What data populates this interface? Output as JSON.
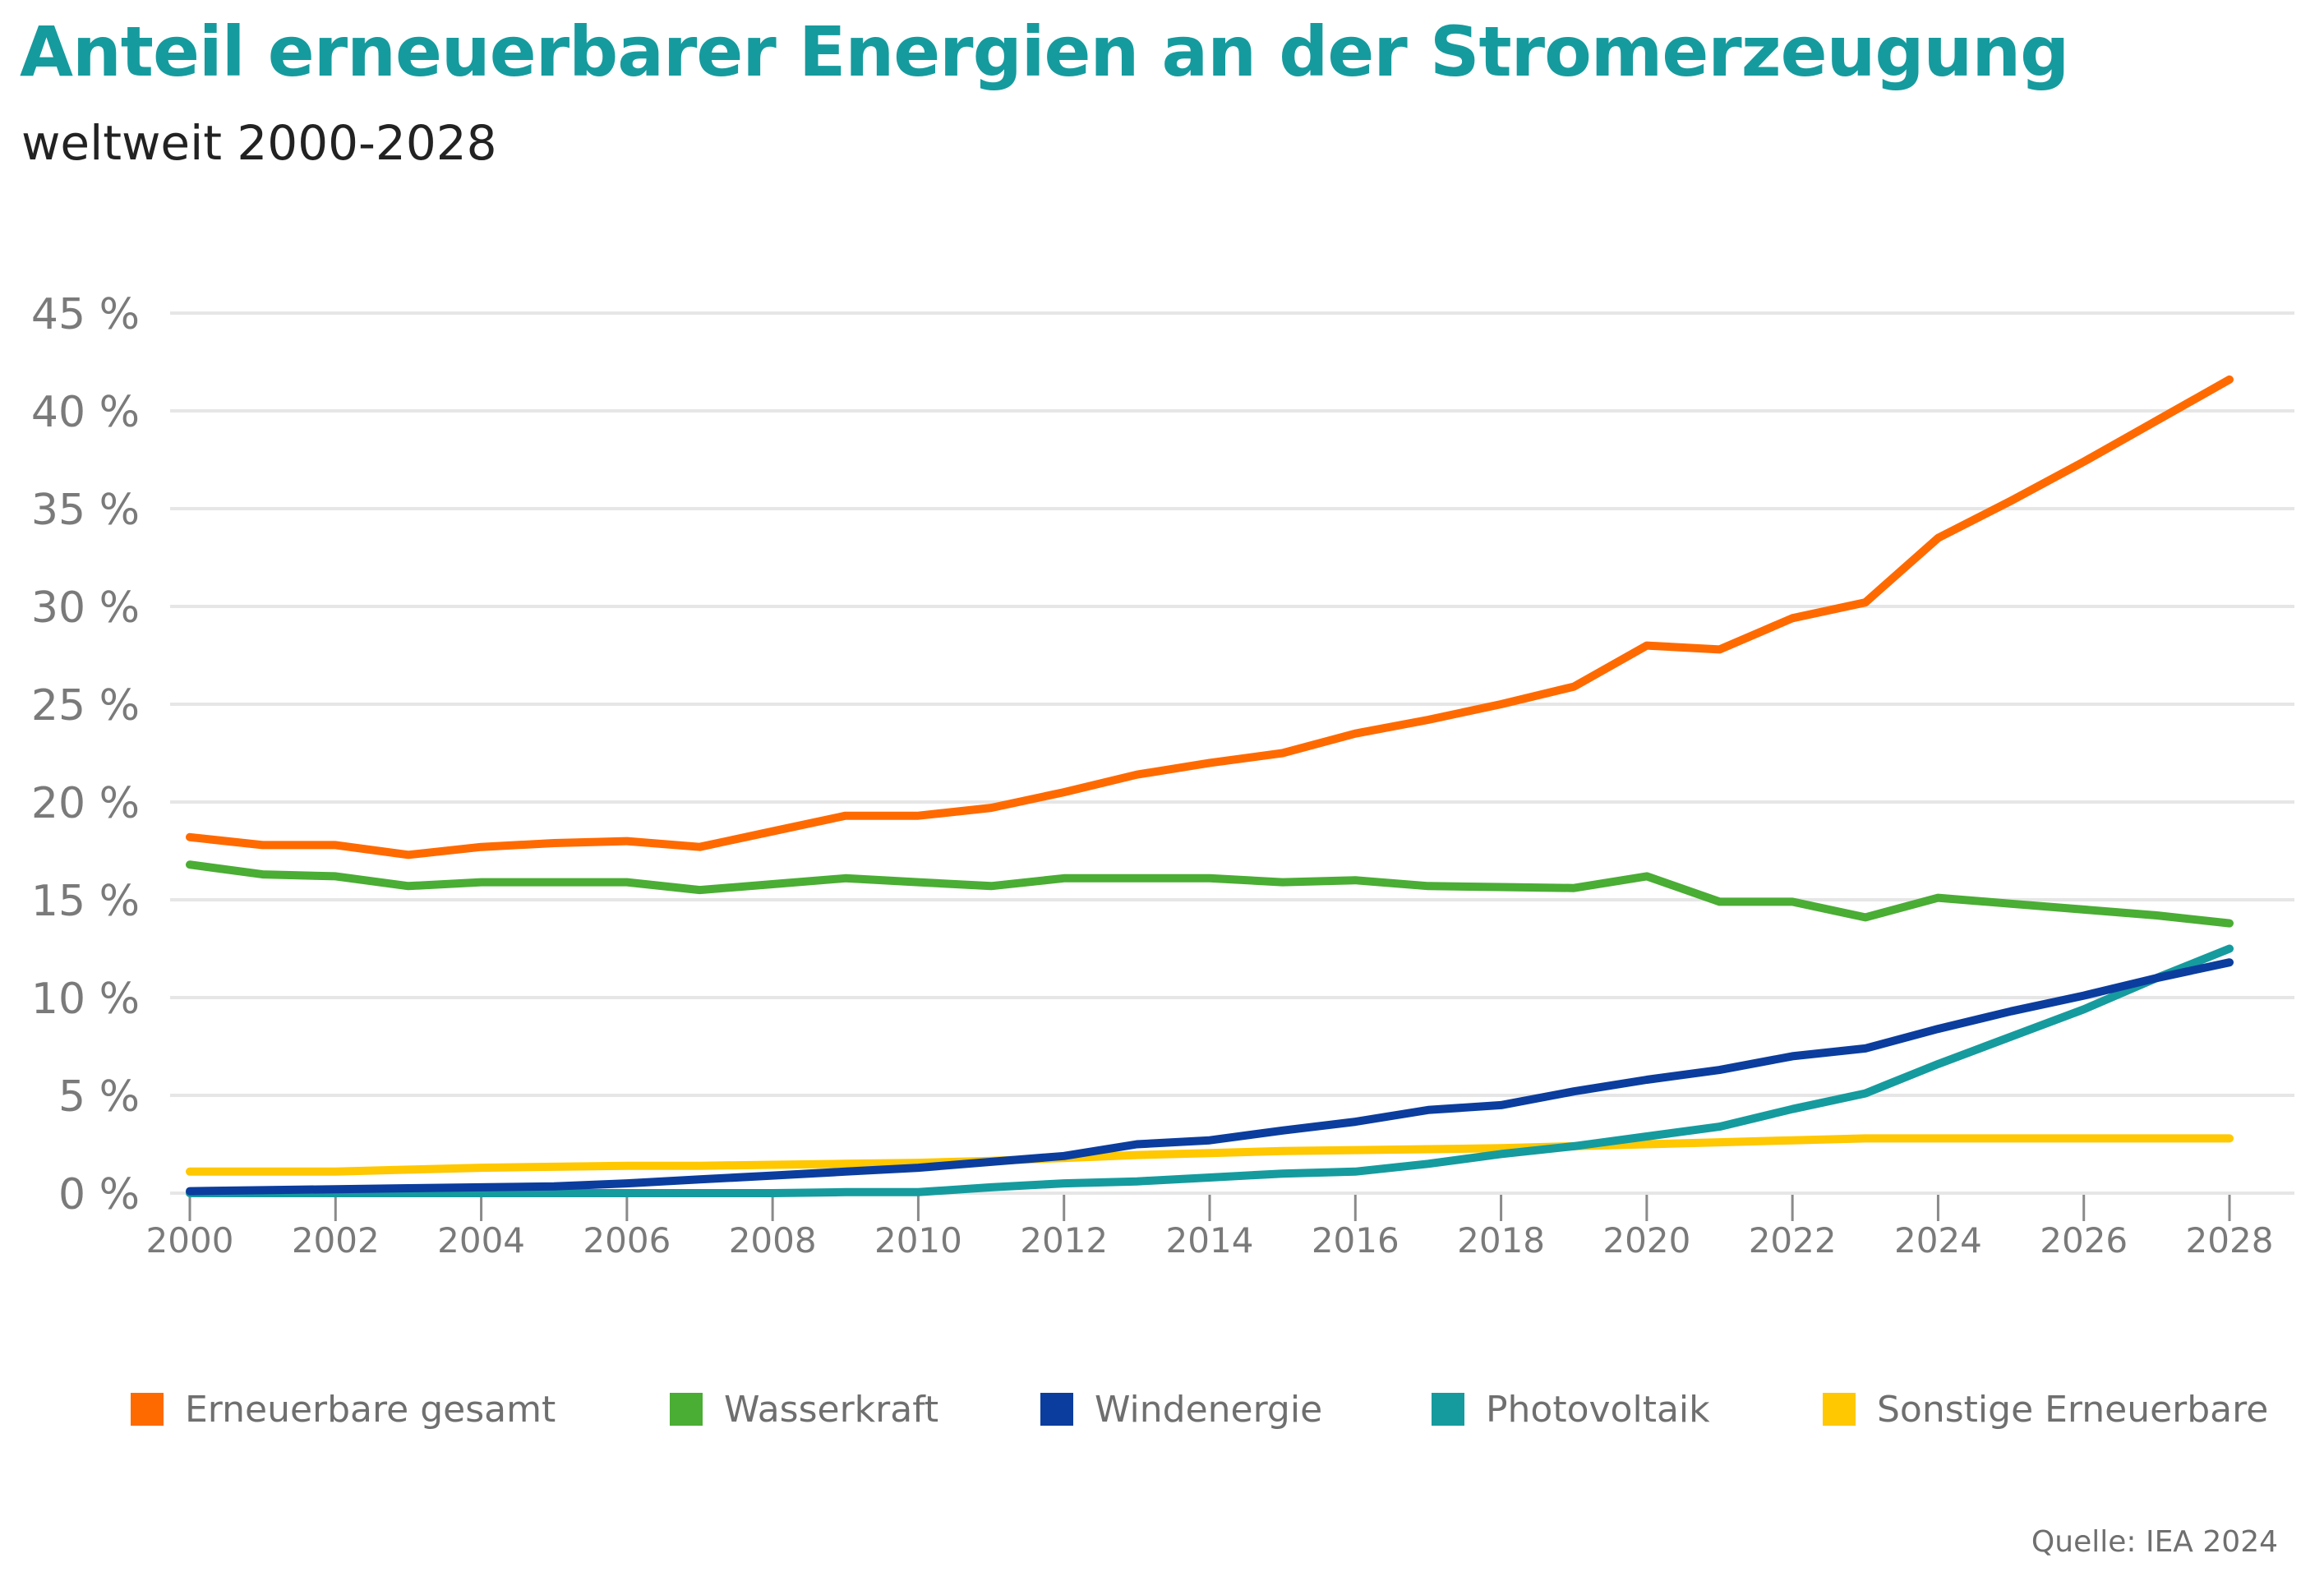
{
  "header": {
    "title": "Anteil erneuerbarer Energien an der Stromerzeugung",
    "subtitle": "weltweit 2000-2028"
  },
  "source": "Quelle: IEA 2024",
  "colors": {
    "title": "#159b9e",
    "grid": "#e6e6e6",
    "tick_text": "#7a7a7a"
  },
  "chart_data": {
    "type": "line",
    "title": "Anteil erneuerbarer Energien an der Stromerzeugung",
    "subtitle": "weltweit 2000-2028",
    "xlabel": "",
    "ylabel": "",
    "x": [
      2000,
      2001,
      2002,
      2003,
      2004,
      2005,
      2006,
      2007,
      2008,
      2009,
      2010,
      2011,
      2012,
      2013,
      2014,
      2015,
      2016,
      2017,
      2018,
      2019,
      2020,
      2021,
      2022,
      2023,
      2024,
      2025,
      2026,
      2027,
      2028
    ],
    "xlim": [
      2000,
      2028
    ],
    "ylim": [
      0,
      45
    ],
    "x_ticks": [
      "2000",
      "2002",
      "2004",
      "2006",
      "2008",
      "2010",
      "2012",
      "2014",
      "2016",
      "2018",
      "2020",
      "2022",
      "2024",
      "2026",
      "2028"
    ],
    "y_ticks": [
      "0 %",
      "5 %",
      "10 %",
      "15 %",
      "20 %",
      "25 %",
      "30 %",
      "35 %",
      "40 %",
      "45 %"
    ],
    "y_tick_values": [
      0,
      5,
      10,
      15,
      20,
      25,
      30,
      35,
      40,
      45
    ],
    "grid": true,
    "legend_position": "bottom",
    "series": [
      {
        "name": "Erneuerbare gesamt",
        "color": "#ff6a00",
        "values": [
          18.2,
          17.8,
          17.8,
          17.3,
          17.7,
          17.9,
          18.0,
          17.7,
          18.5,
          19.3,
          19.3,
          19.7,
          20.5,
          21.4,
          22.0,
          22.5,
          23.5,
          24.2,
          25.0,
          25.9,
          28.0,
          27.8,
          29.4,
          30.2,
          33.5,
          35.4,
          37.4,
          39.5,
          41.6
        ]
      },
      {
        "name": "Wasserkraft",
        "color": "#4aad34",
        "values": [
          16.8,
          16.3,
          16.2,
          15.7,
          15.9,
          15.9,
          15.9,
          15.5,
          15.8,
          16.1,
          15.9,
          15.7,
          16.1,
          16.1,
          16.1,
          15.9,
          16.0,
          15.7,
          15.65,
          15.6,
          16.2,
          14.9,
          14.9,
          14.1,
          15.1,
          14.8,
          14.5,
          14.2,
          13.8
        ]
      },
      {
        "name": "Windenergie",
        "color": "#0b3d9e",
        "values": [
          0.1,
          0.15,
          0.2,
          0.25,
          0.3,
          0.35,
          0.5,
          0.7,
          0.9,
          1.1,
          1.3,
          1.6,
          1.9,
          2.5,
          2.7,
          3.2,
          3.65,
          4.25,
          4.5,
          5.2,
          5.8,
          6.3,
          7.0,
          7.4,
          8.4,
          9.3,
          10.1,
          11.0,
          11.8
        ]
      },
      {
        "name": "Photovoltaik",
        "color": "#159b9e",
        "values": [
          0.0,
          0.0,
          0.0,
          0.0,
          0.0,
          0.0,
          0.0,
          0.0,
          0.0,
          0.05,
          0.05,
          0.3,
          0.5,
          0.6,
          0.8,
          1.0,
          1.1,
          1.5,
          2.0,
          2.4,
          2.9,
          3.4,
          4.3,
          5.1,
          6.6,
          8.0,
          9.4,
          11.0,
          12.5
        ]
      },
      {
        "name": "Sonstige Erneuerbare",
        "color": "#ffc800",
        "values": [
          1.1,
          1.1,
          1.1,
          1.2,
          1.3,
          1.35,
          1.4,
          1.4,
          1.45,
          1.5,
          1.55,
          1.65,
          1.8,
          1.95,
          2.05,
          2.15,
          2.2,
          2.25,
          2.3,
          2.4,
          2.5,
          2.6,
          2.7,
          2.8,
          2.8,
          2.8,
          2.8,
          2.8,
          2.8
        ]
      }
    ]
  }
}
